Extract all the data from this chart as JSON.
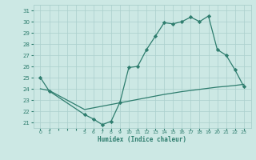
{
  "xlabel": "Humidex (Indice chaleur)",
  "x_values": [
    0,
    1,
    5,
    6,
    7,
    8,
    9,
    10,
    11,
    12,
    13,
    14,
    15,
    16,
    17,
    18,
    19,
    20,
    21,
    22,
    23
  ],
  "y_upper": [
    25.0,
    23.8,
    21.7,
    21.3,
    20.8,
    21.1,
    22.8,
    25.9,
    26.0,
    27.5,
    28.7,
    29.9,
    29.8,
    30.0,
    30.4,
    30.0,
    30.5,
    27.5,
    27.0,
    25.7,
    24.2
  ],
  "y_lower": [
    24.0,
    23.85,
    22.15,
    22.3,
    22.45,
    22.6,
    22.75,
    22.9,
    23.05,
    23.2,
    23.35,
    23.5,
    23.62,
    23.75,
    23.85,
    23.95,
    24.05,
    24.15,
    24.22,
    24.3,
    24.4
  ],
  "line_color": "#2e7d6e",
  "bg_color": "#cce8e4",
  "grid_color": "#aacfcc",
  "ylim": [
    20.5,
    31.5
  ],
  "yticks": [
    21,
    22,
    23,
    24,
    25,
    26,
    27,
    28,
    29,
    30,
    31
  ],
  "xlim": [
    -0.8,
    23.8
  ],
  "marker": "D",
  "marker_size": 2.2,
  "linewidth": 0.9
}
